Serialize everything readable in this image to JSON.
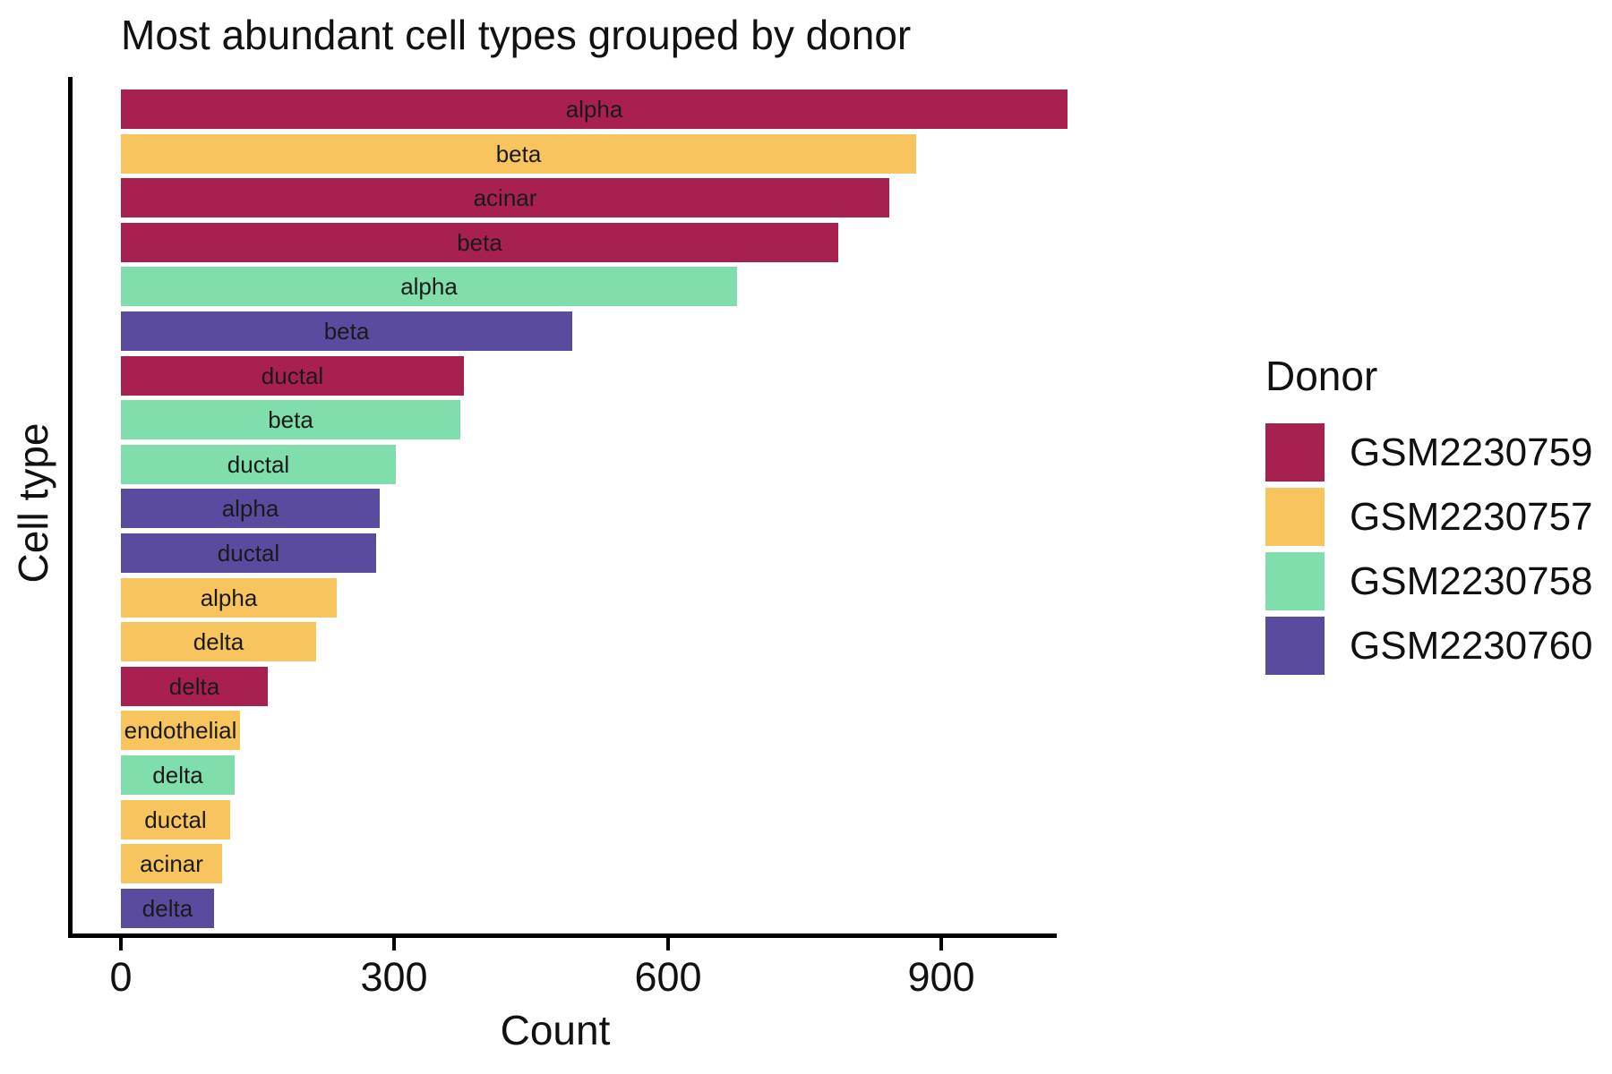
{
  "title": "Most abundant cell types grouped by donor",
  "legend": {
    "title": "Donor",
    "entries": [
      {
        "label": "GSM2230759",
        "color": "#A72050"
      },
      {
        "label": "GSM2230757",
        "color": "#F8C45D"
      },
      {
        "label": "GSM2230758",
        "color": "#7FDEAC"
      },
      {
        "label": "GSM2230760",
        "color": "#5A4B9E"
      }
    ]
  },
  "chart_data": {
    "type": "bar",
    "orientation": "horizontal",
    "title": "Most abundant cell types grouped by donor",
    "xlabel": "Count",
    "ylabel": "Cell type",
    "xlim": [
      0,
      1090
    ],
    "xticks": [
      0,
      300,
      600,
      900
    ],
    "grid": false,
    "legend_title": "Donor",
    "legend_position": "right",
    "bars": [
      {
        "cell_type": "alpha",
        "donor": "GSM2230759",
        "count": 1038
      },
      {
        "cell_type": "beta",
        "donor": "GSM2230757",
        "count": 872
      },
      {
        "cell_type": "acinar",
        "donor": "GSM2230759",
        "count": 843
      },
      {
        "cell_type": "beta",
        "donor": "GSM2230759",
        "count": 787
      },
      {
        "cell_type": "alpha",
        "donor": "GSM2230758",
        "count": 676
      },
      {
        "cell_type": "beta",
        "donor": "GSM2230760",
        "count": 495
      },
      {
        "cell_type": "ductal",
        "donor": "GSM2230759",
        "count": 376
      },
      {
        "cell_type": "beta",
        "donor": "GSM2230758",
        "count": 372
      },
      {
        "cell_type": "ductal",
        "donor": "GSM2230758",
        "count": 302
      },
      {
        "cell_type": "alpha",
        "donor": "GSM2230760",
        "count": 284
      },
      {
        "cell_type": "ductal",
        "donor": "GSM2230760",
        "count": 280
      },
      {
        "cell_type": "alpha",
        "donor": "GSM2230757",
        "count": 237
      },
      {
        "cell_type": "delta",
        "donor": "GSM2230757",
        "count": 214
      },
      {
        "cell_type": "delta",
        "donor": "GSM2230759",
        "count": 161
      },
      {
        "cell_type": "endothelial",
        "donor": "GSM2230757",
        "count": 131
      },
      {
        "cell_type": "delta",
        "donor": "GSM2230758",
        "count": 125
      },
      {
        "cell_type": "ductal",
        "donor": "GSM2230757",
        "count": 120
      },
      {
        "cell_type": "acinar",
        "donor": "GSM2230757",
        "count": 111
      },
      {
        "cell_type": "delta",
        "donor": "GSM2230760",
        "count": 102
      }
    ]
  }
}
